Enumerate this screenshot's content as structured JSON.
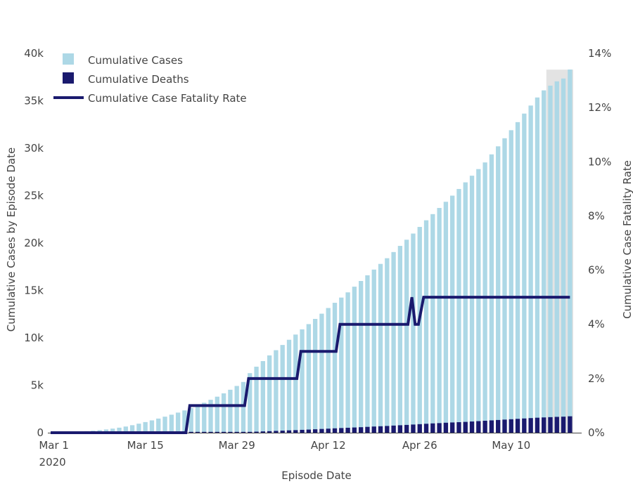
{
  "chart_data": {
    "type": "bar",
    "x_start_date": "2020-03-01",
    "num_days": 80,
    "xlabel": "Episode Date",
    "ylabel_left": "Cumulative Cases by Episode Date",
    "ylabel_right": "Cumulative Case Fatality Rate",
    "ylim_left": [
      0,
      40000
    ],
    "ylim_right": [
      0,
      14
    ],
    "x_ticks": [
      {
        "day": 0,
        "label": "Mar 1",
        "sublabel": "2020"
      },
      {
        "day": 14,
        "label": "Mar 15",
        "sublabel": ""
      },
      {
        "day": 28,
        "label": "Mar 29",
        "sublabel": ""
      },
      {
        "day": 42,
        "label": "Apr 12",
        "sublabel": ""
      },
      {
        "day": 56,
        "label": "Apr 26",
        "sublabel": ""
      },
      {
        "day": 70,
        "label": "May 10",
        "sublabel": ""
      }
    ],
    "y_ticks_left": [
      {
        "value": 0,
        "label": "0"
      },
      {
        "value": 5000,
        "label": "5k"
      },
      {
        "value": 10000,
        "label": "10k"
      },
      {
        "value": 15000,
        "label": "15k"
      },
      {
        "value": 20000,
        "label": "20k"
      },
      {
        "value": 25000,
        "label": "25k"
      },
      {
        "value": 30000,
        "label": "30k"
      },
      {
        "value": 35000,
        "label": "35k"
      },
      {
        "value": 40000,
        "label": "40k"
      }
    ],
    "y_ticks_right": [
      {
        "value": 0,
        "label": "0%"
      },
      {
        "value": 2,
        "label": "2%"
      },
      {
        "value": 4,
        "label": "4%"
      },
      {
        "value": 6,
        "label": "6%"
      },
      {
        "value": 8,
        "label": "8%"
      },
      {
        "value": 10,
        "label": "10%"
      },
      {
        "value": 12,
        "label": "12%"
      },
      {
        "value": 14,
        "label": "14%"
      }
    ],
    "incomplete_period": {
      "start_day": 76,
      "end_day": 80,
      "top_value": 13.4,
      "color": "#d9d9d9"
    },
    "series": [
      {
        "name": "Cumulative Cases",
        "kind": "bar",
        "color": "#add8e6",
        "values": [
          30,
          50,
          70,
          90,
          120,
          160,
          210,
          270,
          340,
          430,
          530,
          650,
          790,
          950,
          1120,
          1300,
          1490,
          1690,
          1900,
          2120,
          2350,
          2600,
          2870,
          3160,
          3470,
          3800,
          4150,
          4530,
          4930,
          5350,
          6280,
          6960,
          7550,
          8150,
          8700,
          9250,
          9800,
          10350,
          10900,
          11450,
          12000,
          12550,
          13150,
          13700,
          14250,
          14800,
          15400,
          16000,
          16600,
          17200,
          17800,
          18400,
          19050,
          19700,
          20350,
          21000,
          21700,
          22400,
          23050,
          23700,
          24350,
          25000,
          25700,
          26400,
          27100,
          27800,
          28500,
          29350,
          30200,
          31050,
          31900,
          32750,
          33650,
          34500,
          35350,
          36100,
          36600,
          37050,
          37350,
          38300
        ]
      },
      {
        "name": "Cumulative Deaths",
        "kind": "bar",
        "color": "#1a1a6e",
        "values": [
          0,
          0,
          0,
          0,
          0,
          0,
          0,
          0,
          0,
          0,
          0,
          0,
          0,
          0,
          0,
          0,
          0,
          0,
          0,
          0,
          0,
          2,
          5,
          8,
          12,
          16,
          21,
          27,
          34,
          40,
          80,
          110,
          135,
          160,
          190,
          215,
          245,
          270,
          300,
          330,
          360,
          395,
          425,
          460,
          490,
          520,
          550,
          580,
          615,
          650,
          680,
          710,
          750,
          785,
          820,
          860,
          900,
          940,
          980,
          1010,
          1050,
          1080,
          1110,
          1140,
          1180,
          1220,
          1260,
          1300,
          1340,
          1380,
          1420,
          1460,
          1500,
          1540,
          1580,
          1610,
          1640,
          1670,
          1690,
          1730
        ]
      },
      {
        "name": "Cumulative Case Fatality Rate",
        "kind": "line",
        "color": "#1a1a6e",
        "points": [
          [
            0,
            0
          ],
          [
            20.7,
            0
          ],
          [
            21.3,
            1
          ],
          [
            29.7,
            1
          ],
          [
            30.3,
            2
          ],
          [
            37.7,
            2
          ],
          [
            38.3,
            3
          ],
          [
            43.7,
            3
          ],
          [
            44.3,
            4
          ],
          [
            54.7,
            4
          ],
          [
            55.3,
            5
          ],
          [
            55.8,
            4
          ],
          [
            56.3,
            4
          ],
          [
            57.1,
            5
          ],
          [
            79.5,
            5
          ]
        ]
      }
    ],
    "legend": {
      "position": "top-left"
    }
  }
}
